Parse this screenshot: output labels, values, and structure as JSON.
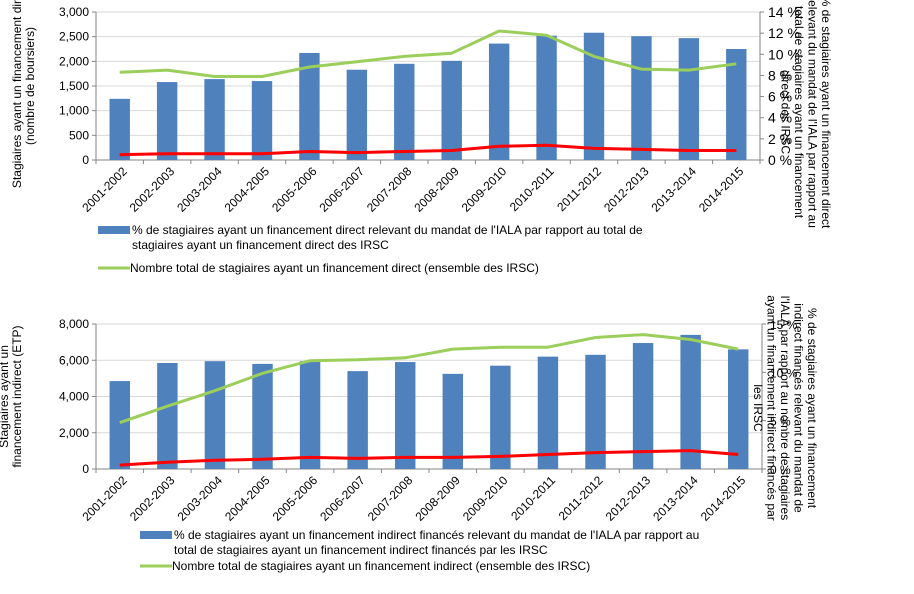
{
  "chart_data": [
    {
      "type": "bar",
      "categories": [
        "2001-2002",
        "2002-2003",
        "2003-2004",
        "2004-2005",
        "2005-2006",
        "2006-2007",
        "2007-2008",
        "2008-2009",
        "2009-2010",
        "2010-2011",
        "2011-2012",
        "2012-2013",
        "2013-2014",
        "2014-2015"
      ],
      "ylabel": "Stagiaires ayant un financement direct (nombre de boursiers)",
      "y2label": "% de stagiaires ayant un financement direct relevant du mandat de l'IALA par rapport au total de stagiaires ayant un financement direct des IRSC",
      "ylim": [
        0,
        3000
      ],
      "yticks": [
        "0",
        "500",
        "1,000",
        "1,500",
        "2,000",
        "2,500",
        "3,000"
      ],
      "y2lim": [
        0,
        14
      ],
      "y2ticks": [
        "0 %",
        "2 %",
        "4 %",
        "6 %",
        "8 %",
        "10 %",
        "12 %",
        "14 %"
      ],
      "colors": {
        "bar": "#4F81BD",
        "green_line": "#9BCE5A",
        "red_line": "#FF0000",
        "axis": "#868686",
        "grid": "#D9D9D9"
      },
      "series": [
        {
          "name": "% de stagiaires ayant un financement direct relevant du mandat de l'IALA par rapport au total de stagiaires ayant un financement direct des IRSC",
          "kind": "bar",
          "axis": "left",
          "values": [
            1240,
            1580,
            1640,
            1600,
            2170,
            1830,
            1950,
            2010,
            2360,
            2520,
            2580,
            2510,
            2470,
            2250
          ]
        },
        {
          "name": "Nombre total de stagiaires ayant un financement direct (ensemble des IRSC)",
          "kind": "line",
          "axis": "right",
          "values": [
            8.3,
            8.5,
            7.9,
            7.9,
            8.8,
            9.3,
            9.8,
            10.1,
            12.2,
            11.8,
            9.8,
            8.6,
            8.5,
            9.1
          ]
        },
        {
          "kind": "line",
          "axis": "right",
          "values": [
            0.5,
            0.6,
            0.6,
            0.6,
            0.8,
            0.7,
            0.8,
            0.9,
            1.3,
            1.4,
            1.1,
            1.0,
            0.9,
            0.9
          ]
        }
      ]
    },
    {
      "type": "bar",
      "categories": [
        "2001-2002",
        "2002-2003",
        "2003-2004",
        "2004-2005",
        "2005-2006",
        "2006-2007",
        "2007-2008",
        "2008-2009",
        "2009-2010",
        "2010-2011",
        "2011-2012",
        "2012-2013",
        "2013-2014",
        "2014-2015"
      ],
      "ylabel": "Stagiaires ayant un financement indirect (ETP)",
      "y2label": "% de stagiaires ayant un financement indirect financés relevant du mandat de l'IALA par rapport au nombre de stagiaires ayant un financement indirect financés par les IRSC",
      "ylim": [
        0,
        8000
      ],
      "yticks": [
        "0",
        "2,000",
        "4,000",
        "6,000",
        "8,000"
      ],
      "y2lim": [
        0,
        15
      ],
      "y2ticks": [
        "0 %",
        "5 %",
        "10 %",
        "15 %"
      ],
      "colors": {
        "bar": "#4F81BD",
        "green_line": "#9BCE5A",
        "red_line": "#FF0000",
        "axis": "#868686",
        "grid": "#D9D9D9"
      },
      "series": [
        {
          "name": "% de stagiaires ayant un financement indirect financés relevant du mandat de l'IALA par rapport au total de stagiaires ayant un financement indirect financés par les IRSC",
          "kind": "bar",
          "axis": "left",
          "values": [
            4850,
            5850,
            5950,
            5800,
            5950,
            5400,
            5900,
            5250,
            5700,
            6200,
            6300,
            6950,
            7400,
            6600
          ]
        },
        {
          "name": "Nombre total de stagiaires ayant un financement indirect (ensemble des IRSC)",
          "kind": "line",
          "axis": "right",
          "values": [
            4.8,
            6.5,
            8.1,
            9.9,
            11.2,
            11.3,
            11.5,
            12.4,
            12.6,
            12.6,
            13.6,
            13.9,
            13.4,
            12.4
          ]
        },
        {
          "kind": "line",
          "axis": "right",
          "values": [
            0.4,
            0.7,
            0.9,
            1.0,
            1.2,
            1.1,
            1.2,
            1.2,
            1.3,
            1.5,
            1.7,
            1.8,
            1.9,
            1.5
          ]
        }
      ]
    }
  ]
}
